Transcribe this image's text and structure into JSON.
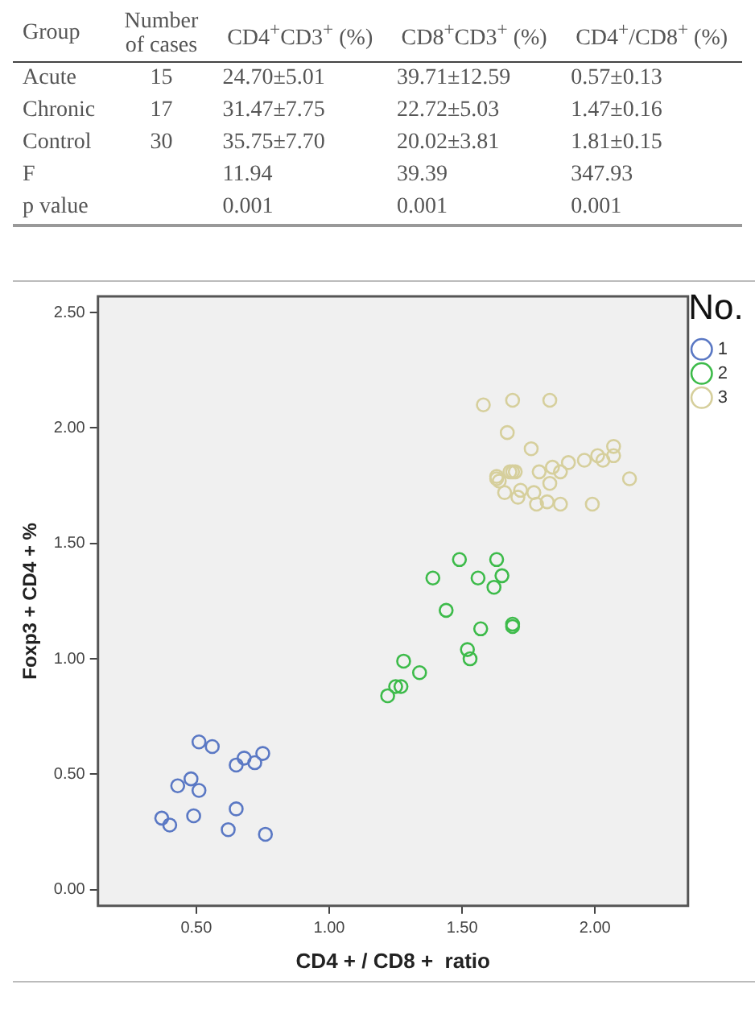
{
  "chart_data": [
    {
      "type": "other",
      "ylabel": "Group",
      "categories": [
        "Number of cases",
        "CD4$^{+}$CD3$^{+}$ (%)",
        "CD8$^{+}$CD3$^{+}$ (%)",
        "CD4$^{+}$/CD8$^{+}$ (%)"
      ],
      "y_categories": [
        "Acute",
        "Chronic",
        "Control",
        "F",
        "p value"
      ],
      "cell_labels": [
        [
          "15",
          "24.70±5.01",
          "39.71±12.59",
          "0.57±0.13"
        ],
        [
          "17",
          "31.47±7.75",
          "22.72±5.03",
          "1.47±0.16"
        ],
        [
          "30",
          "35.75±7.70",
          "20.02±3.81",
          "1.81±0.15"
        ],
        [
          null,
          "11.94",
          "39.39",
          "347.93"
        ],
        [
          null,
          "0.001",
          "0.001",
          "0.001"
        ]
      ]
    },
    {
      "type": "scatter",
      "xlabel": "CD4 + / CD8 +  ratio",
      "ylabel": "Foxp3 + CD4 + %",
      "legend_title": "No.",
      "legend": "top right",
      "marker": "circle",
      "xlim": [
        0.13,
        2.35
      ],
      "ylim": [
        -0.07,
        2.57
      ],
      "xticks": [
        {
          "value": 0.5,
          "label": "0.50"
        },
        {
          "value": 1,
          "label": "1.00"
        },
        {
          "value": 1.5,
          "label": "1.50"
        },
        {
          "value": 2,
          "label": "2.00"
        }
      ],
      "yticks": [
        {
          "value": 0,
          "label": "0.00"
        },
        {
          "value": 0.5,
          "label": "0.50"
        },
        {
          "value": 1,
          "label": "1.00"
        },
        {
          "value": 1.5,
          "label": "1.50"
        },
        {
          "value": 2,
          "label": "2.00"
        },
        {
          "value": 2.5,
          "label": "2.50"
        }
      ],
      "series": [
        {
          "name": "1",
          "color": "#5a78c4",
          "x": [
            0.51,
            0.56,
            0.43,
            0.48,
            0.51,
            0.37,
            0.4,
            0.49,
            0.65,
            0.68,
            0.72,
            0.75,
            0.65,
            0.62,
            0.76
          ],
          "values": [
            0.64,
            0.62,
            0.45,
            0.48,
            0.43,
            0.31,
            0.28,
            0.32,
            0.54,
            0.57,
            0.55,
            0.59,
            0.35,
            0.26,
            0.24
          ]
        },
        {
          "name": "2",
          "color": "#3dbb4a",
          "x": [
            1.22,
            1.25,
            1.27,
            1.28,
            1.34,
            1.52,
            1.53,
            1.57,
            1.69,
            1.69,
            1.49,
            1.63,
            1.39,
            1.56,
            1.65,
            1.62,
            1.44
          ],
          "values": [
            0.84,
            0.88,
            0.88,
            0.99,
            0.94,
            1.04,
            1.0,
            1.13,
            1.15,
            1.14,
            1.43,
            1.43,
            1.35,
            1.35,
            1.36,
            1.31,
            1.21
          ]
        },
        {
          "name": "3",
          "color": "#d6cf9c",
          "x": [
            1.58,
            1.69,
            1.83,
            1.67,
            1.76,
            2.07,
            2.07,
            2.01,
            2.03,
            1.96,
            1.9,
            1.84,
            1.87,
            1.79,
            1.69,
            1.7,
            1.63,
            1.63,
            2.13,
            1.83,
            1.66,
            1.72,
            1.77,
            1.71,
            1.78,
            1.82,
            1.87,
            1.99,
            1.64,
            1.68
          ],
          "values": [
            2.1,
            2.12,
            2.12,
            1.98,
            1.91,
            1.92,
            1.88,
            1.88,
            1.86,
            1.86,
            1.85,
            1.83,
            1.81,
            1.81,
            1.81,
            1.81,
            1.79,
            1.78,
            1.78,
            1.76,
            1.72,
            1.73,
            1.72,
            1.7,
            1.67,
            1.68,
            1.67,
            1.67,
            1.77,
            1.81
          ]
        }
      ]
    }
  ]
}
